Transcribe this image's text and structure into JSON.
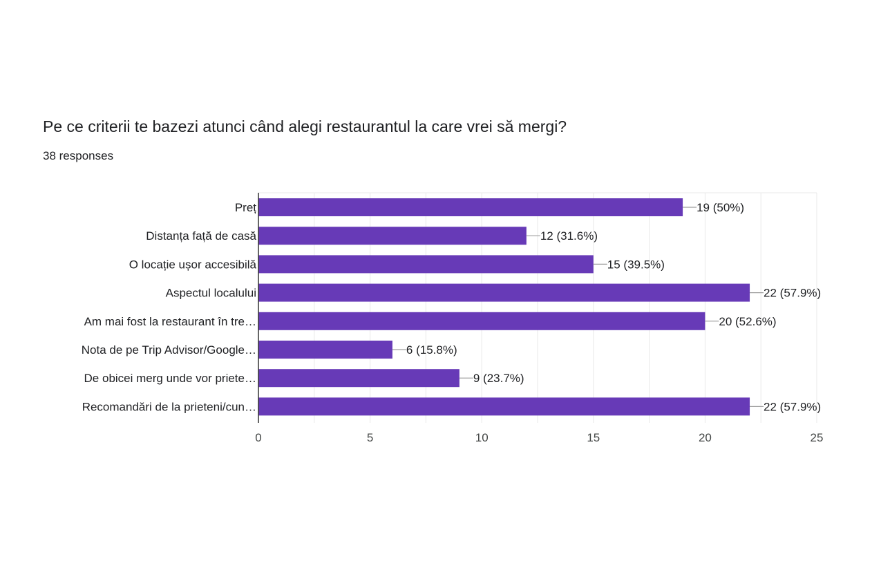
{
  "question": {
    "title": "Pe ce criterii te bazezi atunci când alegi restaurantul la care vrei să mergi?",
    "responses": "38 responses"
  },
  "colors": {
    "bar": "#673ab7",
    "grid": "#e8e8e8",
    "axis": "#333333",
    "connector": "#9e9e9e"
  },
  "chart_data": {
    "type": "bar",
    "orientation": "horizontal",
    "categories": [
      "Preț",
      "Distanța față de casă",
      "O locație ușor accesibilă",
      "Aspectul localului",
      "Am mai fost la restaurant în tre…",
      "Nota de pe Trip Advisor/Google…",
      "De obicei merg unde vor priete…",
      "Recomandări de la prieteni/cun…"
    ],
    "values": [
      19,
      12,
      15,
      22,
      20,
      6,
      9,
      22
    ],
    "value_labels": [
      "19 (50%)",
      "12 (31.6%)",
      "15 (39.5%)",
      "22 (57.9%)",
      "20 (52.6%)",
      "6 (15.8%)",
      "9 (23.7%)",
      "22 (57.9%)"
    ],
    "xlim": [
      0,
      25
    ],
    "xticks": [
      0,
      5,
      10,
      15,
      20,
      25
    ],
    "xtick_labels": [
      "0",
      "5",
      "10",
      "15",
      "20",
      "25"
    ],
    "grid": true
  }
}
